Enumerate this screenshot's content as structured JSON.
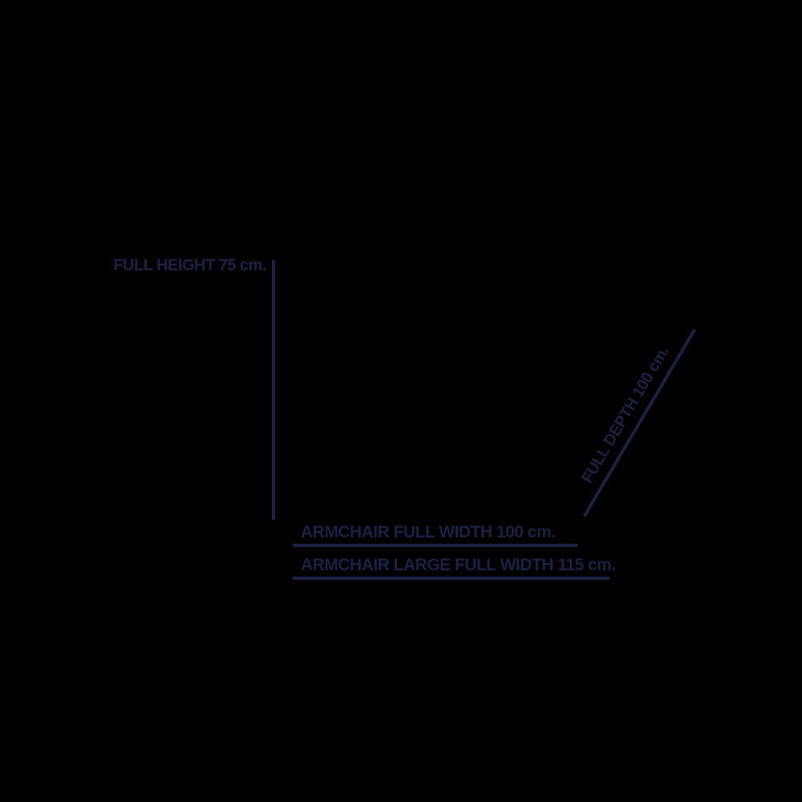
{
  "canvas": {
    "background_color": "#000000",
    "ink_color": "#1a2142"
  },
  "diagram": {
    "labels": {
      "full_height": "FULL HEIGHT 75 cm.",
      "full_depth": "FULL DEPTH 100 cm.",
      "armchair_full_width": "ARMCHAIR FULL WIDTH 100 cm.",
      "armchair_large_full_width": "ARMCHAIR LARGE FULL WIDTH 115 cm."
    },
    "measurements": [
      {
        "dimension": "Full height",
        "value_cm": 75
      },
      {
        "dimension": "Full depth",
        "value_cm": 100
      },
      {
        "dimension": "Armchair full width",
        "value_cm": 100
      },
      {
        "dimension": "Armchair large full width",
        "value_cm": 115
      }
    ],
    "unit": "cm."
  }
}
